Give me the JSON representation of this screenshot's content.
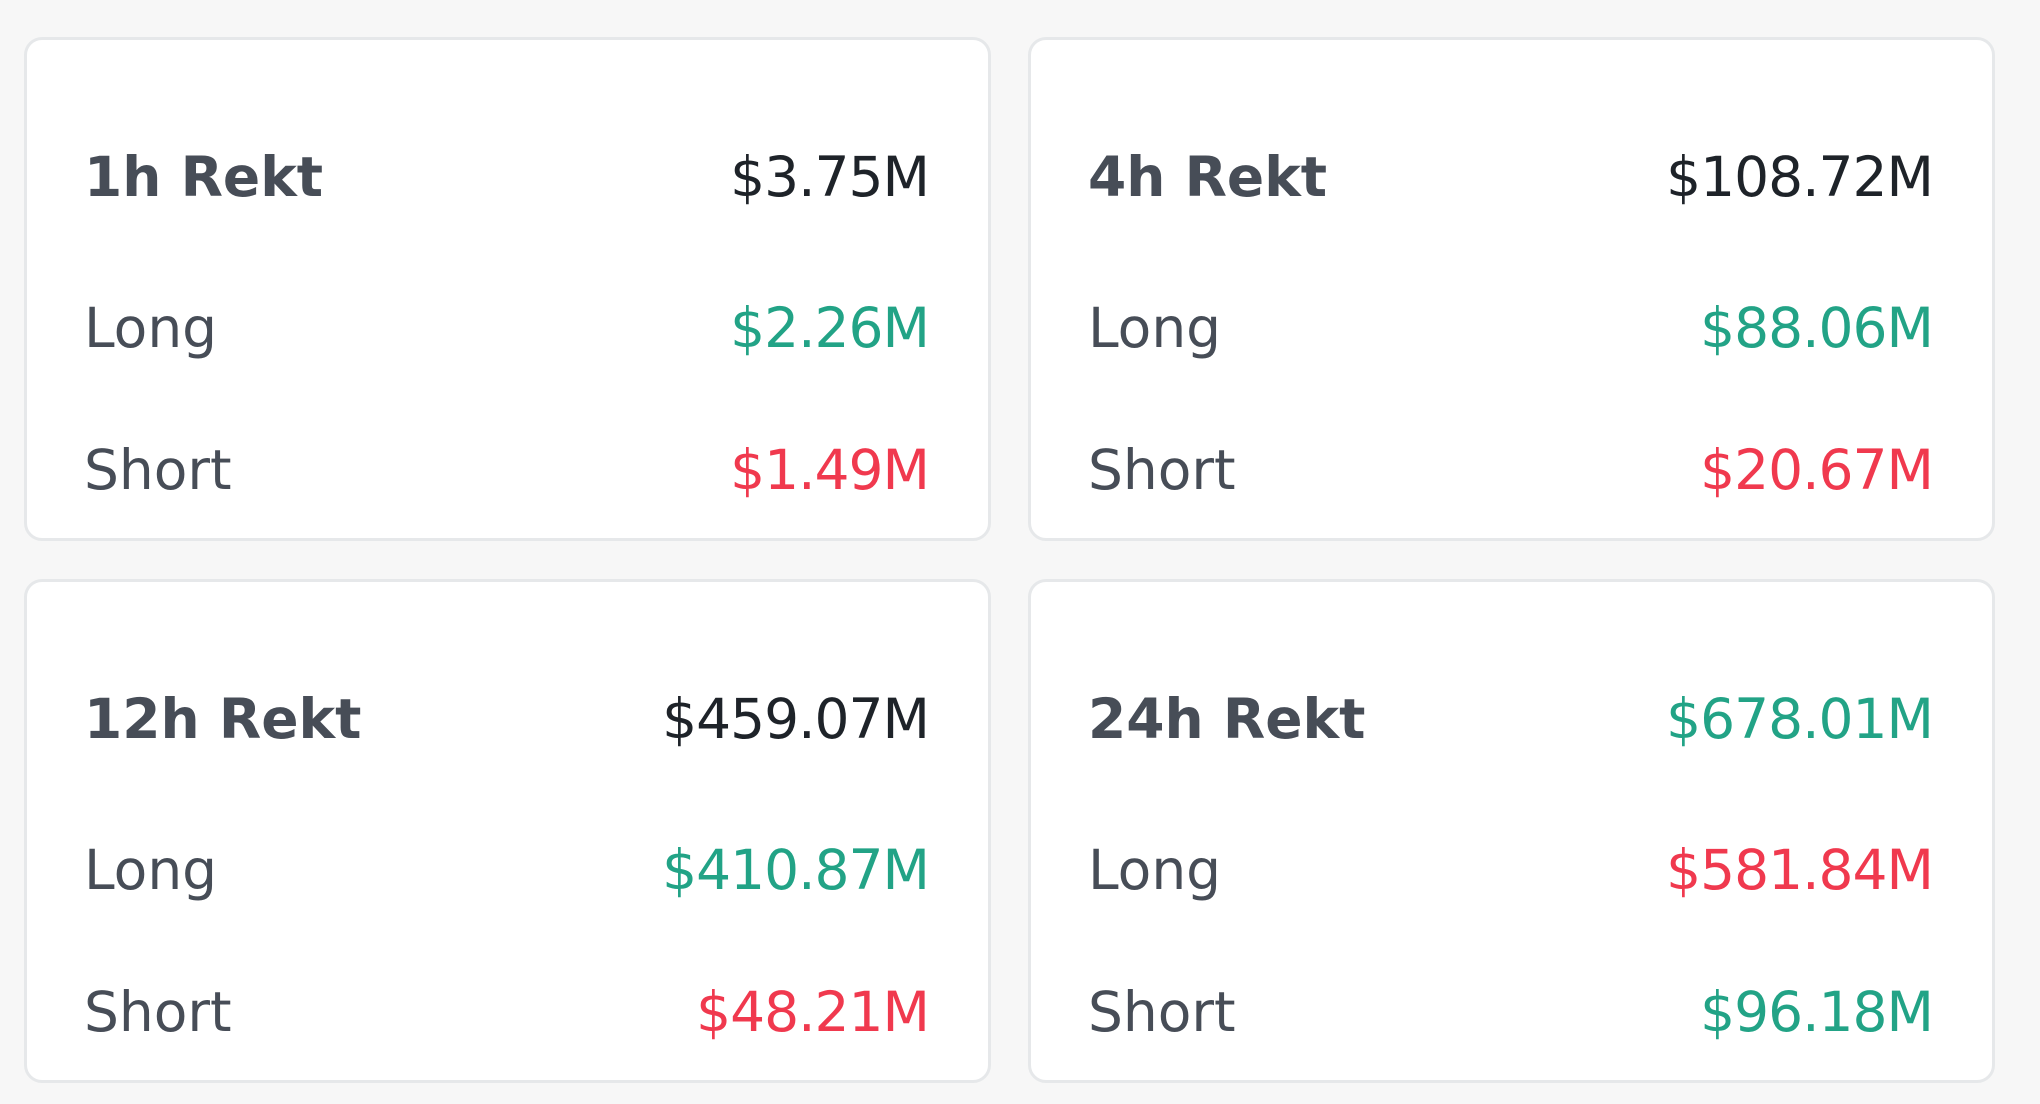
{
  "cards": [
    {
      "title": "1h Rekt",
      "total": "$3.75M",
      "total_color": "neutral",
      "long_label": "Long",
      "long_value": "$2.26M",
      "long_color": "green",
      "short_label": "Short",
      "short_value": "$1.49M",
      "short_color": "red"
    },
    {
      "title": "4h Rekt",
      "total": "$108.72M",
      "total_color": "neutral",
      "long_label": "Long",
      "long_value": "$88.06M",
      "long_color": "green",
      "short_label": "Short",
      "short_value": "$20.67M",
      "short_color": "red"
    },
    {
      "title": "12h Rekt",
      "total": "$459.07M",
      "total_color": "neutral",
      "long_label": "Long",
      "long_value": "$410.87M",
      "long_color": "green",
      "short_label": "Short",
      "short_value": "$48.21M",
      "short_color": "red"
    },
    {
      "title": "24h Rekt",
      "total": "$678.01M",
      "total_color": "green",
      "long_label": "Long",
      "long_value": "$581.84M",
      "long_color": "red",
      "short_label": "Short",
      "short_value": "$96.18M",
      "short_color": "green"
    }
  ],
  "colors": {
    "neutral": "#1e2329",
    "green": "#22a386",
    "red": "#f0394e",
    "label": "#474d57",
    "card_border": "#e6e8ea",
    "background": "#f7f7f7"
  }
}
